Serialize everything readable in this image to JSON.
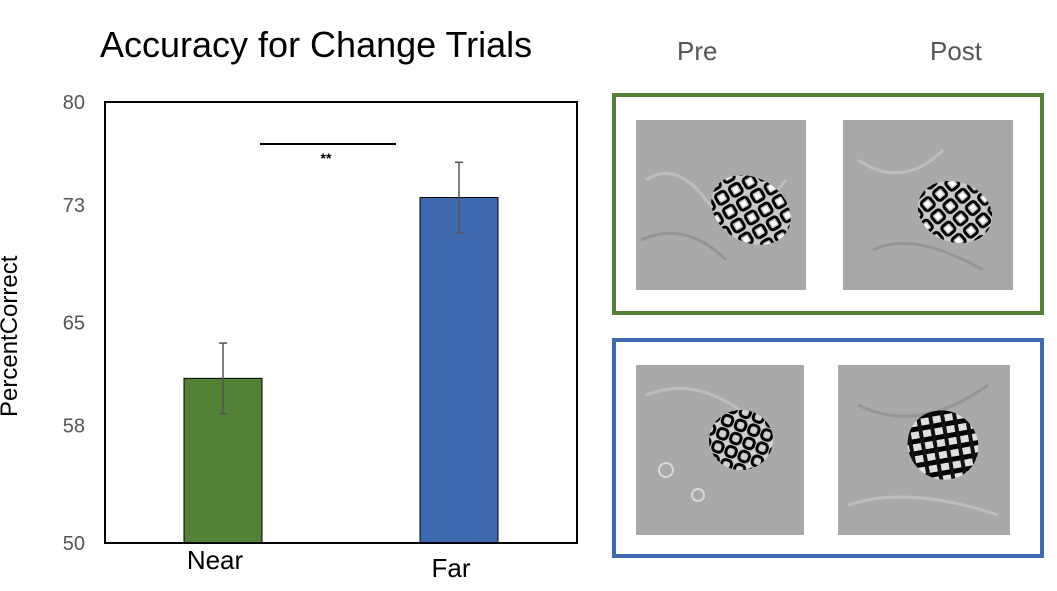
{
  "chart_data": {
    "type": "bar",
    "title": "Accuracy for Change Trials",
    "ylabel": "PercentCorrect",
    "xlabel": "",
    "categories": [
      "Near",
      "Far"
    ],
    "values": [
      61.2,
      73.5
    ],
    "errors": [
      2.4,
      2.4
    ],
    "colors": [
      "#538135",
      "#3d6ab0"
    ],
    "ylim": [
      50,
      80
    ],
    "yticks": [
      50,
      58,
      65,
      73,
      80
    ],
    "grid": false,
    "annotations": [
      {
        "text": "**",
        "between": [
          "Near",
          "Far"
        ]
      }
    ]
  },
  "panels": {
    "column_labels": {
      "pre": "Pre",
      "post": "Post"
    },
    "near_border_color": "#538135",
    "far_border_color": "#3d6ab0"
  }
}
